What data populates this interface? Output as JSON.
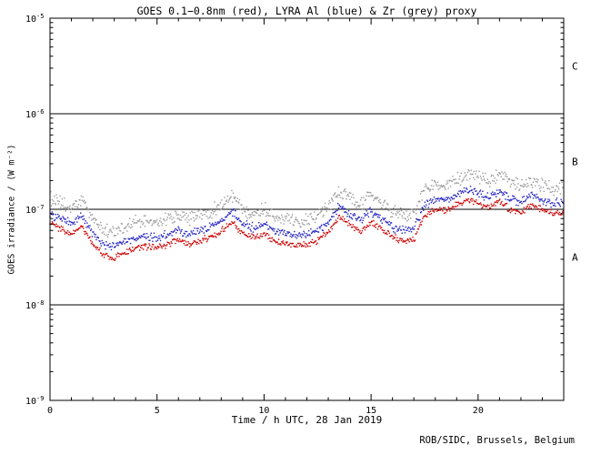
{
  "footer": {
    "credit": "ROB/SIDC, Brussels, Belgium"
  },
  "chart_data": {
    "type": "scatter",
    "title": "GOES 0.1−0.8nm (red), LYRA Al (blue) & Zr (grey) proxy",
    "xlabel": "Time / h UTC, 28 Jan 2019",
    "ylabel": "GOES irradiance / (W m⁻²)",
    "xlim": [
      0,
      24
    ],
    "x_major_ticks": [
      0,
      5,
      10,
      15,
      20
    ],
    "y_exponent_range": [
      -9,
      -5
    ],
    "y_tick_exponents": [
      -9,
      -8,
      -7,
      -6,
      -5
    ],
    "y_scale": "log",
    "grid": false,
    "hlines": [
      1e-06,
      1e-07,
      1e-08
    ],
    "class_bands": [
      {
        "label": "C",
        "log10_center": -5.5
      },
      {
        "label": "B",
        "log10_center": -6.5
      },
      {
        "label": "A",
        "log10_center": -7.5
      }
    ],
    "t_start_hours": 0,
    "t_step_hours": 0.5,
    "dot_interval_hours": 0.0333,
    "series": [
      {
        "name": "LYRA Zr proxy (grey)",
        "color_name": "grey",
        "color": "#9a9a9a",
        "scatter_log10": 0.085,
        "values": [
          1.3e-07,
          1.15e-07,
          1e-07,
          1.25e-07,
          8e-08,
          6.1e-08,
          5.8e-08,
          6.5e-08,
          7.2e-08,
          7.5e-08,
          7.2e-08,
          8e-08,
          8.7e-08,
          8e-08,
          8.7e-08,
          9.4e-08,
          1.1e-07,
          1.4e-07,
          1e-07,
          9.4e-08,
          1e-07,
          8.7e-08,
          8e-08,
          7.5e-08,
          8e-08,
          8.7e-08,
          1.1e-07,
          1.5e-07,
          1.3e-07,
          1.1e-07,
          1.4e-07,
          1.15e-07,
          9.4e-08,
          8.7e-08,
          9e-08,
          1.6e-07,
          1.9e-07,
          1.8e-07,
          2e-07,
          2.3e-07,
          2.2e-07,
          1.95e-07,
          2.25e-07,
          1.9e-07,
          1.75e-07,
          2e-07,
          1.8e-07,
          1.65e-07,
          1.75e-07
        ]
      },
      {
        "name": "LYRA Al proxy (blue)",
        "color_name": "blue",
        "color": "#2020c0",
        "scatter_log10": 0.055,
        "values": [
          9e-08,
          8e-08,
          7e-08,
          8.5e-08,
          5.5e-08,
          4.2e-08,
          4e-08,
          4.5e-08,
          5e-08,
          5.2e-08,
          5e-08,
          5.5e-08,
          6e-08,
          5.5e-08,
          6e-08,
          6.5e-08,
          7.5e-08,
          9.5e-08,
          7e-08,
          6.5e-08,
          7e-08,
          6e-08,
          5.5e-08,
          5.2e-08,
          5.5e-08,
          6e-08,
          7.5e-08,
          1.05e-07,
          9e-08,
          7.5e-08,
          9.5e-08,
          8e-08,
          6.5e-08,
          6e-08,
          6.2e-08,
          1.1e-07,
          1.3e-07,
          1.25e-07,
          1.4e-07,
          1.6e-07,
          1.5e-07,
          1.35e-07,
          1.55e-07,
          1.3e-07,
          1.2e-07,
          1.4e-07,
          1.25e-07,
          1.15e-07,
          1.2e-07
        ]
      },
      {
        "name": "GOES 0.1−0.8nm (red)",
        "color_name": "red",
        "color": "#cc0000",
        "scatter_log10": 0.04,
        "values": [
          7e-08,
          6.2e-08,
          5.4e-08,
          6.6e-08,
          4.3e-08,
          3.3e-08,
          3.1e-08,
          3.5e-08,
          3.9e-08,
          4.1e-08,
          3.9e-08,
          4.3e-08,
          4.7e-08,
          4.3e-08,
          4.7e-08,
          5.1e-08,
          5.9e-08,
          7.4e-08,
          5.5e-08,
          5.1e-08,
          5.5e-08,
          4.7e-08,
          4.3e-08,
          4.1e-08,
          4.3e-08,
          4.7e-08,
          5.9e-08,
          8.2e-08,
          7e-08,
          5.9e-08,
          7.4e-08,
          6.2e-08,
          5.1e-08,
          4.7e-08,
          4.8e-08,
          8.6e-08,
          1e-07,
          9.8e-08,
          1.1e-07,
          1.25e-07,
          1.15e-07,
          1.05e-07,
          1.2e-07,
          1e-07,
          9.4e-08,
          1.1e-07,
          9.8e-08,
          9e-08,
          9.4e-08
        ]
      }
    ]
  }
}
